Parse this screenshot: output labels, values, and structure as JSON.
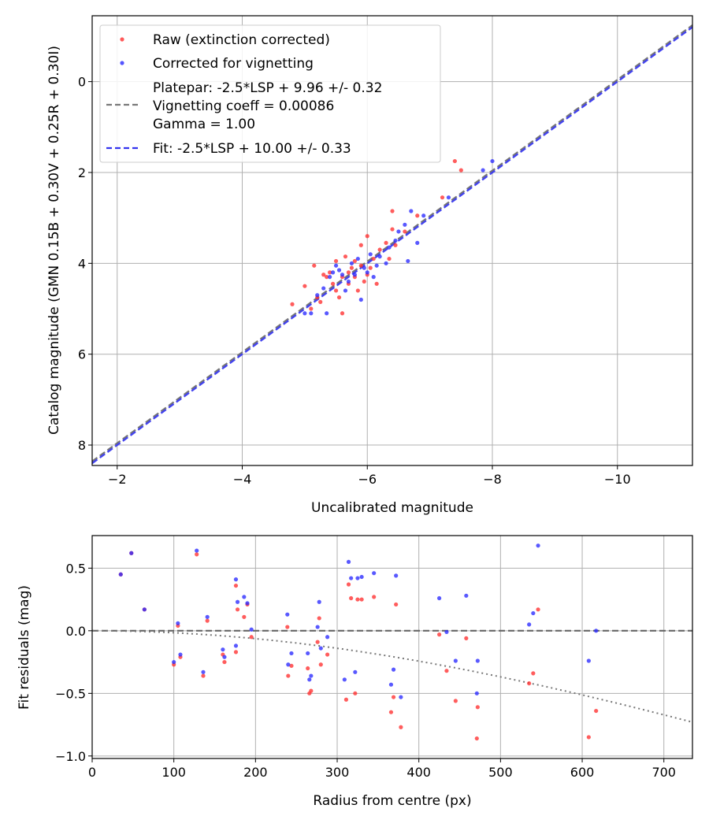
{
  "chart_data": [
    {
      "type": "scatter",
      "id": "calibration",
      "xlabel": "Uncalibrated magnitude",
      "ylabel": "Catalog magnitude (GMN 0.15B + 0.30V + 0.25R + 0.30I)",
      "xlim": [
        -1.6,
        -11.2
      ],
      "ylim": [
        8.45,
        -1.45
      ],
      "x_ticks": [
        -2,
        -4,
        -6,
        -8,
        -10
      ],
      "x_tick_labels": [
        "−2",
        "−4",
        "−6",
        "−8",
        "−10"
      ],
      "y_ticks": [
        0,
        2,
        4,
        6,
        8
      ],
      "y_tick_labels": [
        "0",
        "2",
        "4",
        "6",
        "8"
      ],
      "grid": true,
      "legend_position": "top-left",
      "legend": [
        {
          "label": "Raw (extinction corrected)",
          "kind": "point",
          "color": "#ff3030"
        },
        {
          "label": "Corrected for vignetting",
          "kind": "point",
          "color": "#2a2aff"
        },
        {
          "label_lines": [
            "Platepar: -2.5*LSP + 9.96 +/- 0.32",
            "Vignetting coeff = 0.00086",
            "Gamma = 1.00"
          ],
          "kind": "dash",
          "color": "#7a7a7a"
        },
        {
          "label": "Fit: -2.5*LSP + 10.00 +/- 0.33",
          "kind": "dash",
          "color": "#3333ee"
        }
      ],
      "lines": [
        {
          "name": "Platepar",
          "slope": 1.0,
          "intercept": 9.96,
          "color": "#6f6f6f"
        },
        {
          "name": "Fit",
          "slope": 1.0,
          "intercept": 10.0,
          "color": "#3a3aee"
        }
      ],
      "series": [
        {
          "name": "Raw (extinction corrected)",
          "color": "#ff3030",
          "points": [
            [
              -4.8,
              4.9
            ],
            [
              -5.0,
              4.5
            ],
            [
              -5.1,
              5.0
            ],
            [
              -5.15,
              4.05
            ],
            [
              -5.2,
              4.75
            ],
            [
              -5.25,
              4.85
            ],
            [
              -5.3,
              4.25
            ],
            [
              -5.35,
              4.3
            ],
            [
              -5.4,
              4.2
            ],
            [
              -5.45,
              4.45
            ],
            [
              -5.5,
              3.95
            ],
            [
              -5.5,
              4.6
            ],
            [
              -5.55,
              4.75
            ],
            [
              -5.6,
              4.3
            ],
            [
              -5.6,
              5.1
            ],
            [
              -5.65,
              3.85
            ],
            [
              -5.7,
              4.2
            ],
            [
              -5.7,
              4.45
            ],
            [
              -5.75,
              4.1
            ],
            [
              -5.8,
              4.3
            ],
            [
              -5.8,
              3.95
            ],
            [
              -5.85,
              4.6
            ],
            [
              -5.9,
              4.05
            ],
            [
              -5.9,
              3.6
            ],
            [
              -5.95,
              4.4
            ],
            [
              -6.0,
              4.25
            ],
            [
              -6.0,
              3.4
            ],
            [
              -6.05,
              4.1
            ],
            [
              -6.1,
              3.9
            ],
            [
              -6.15,
              4.45
            ],
            [
              -6.2,
              3.7
            ],
            [
              -6.3,
              3.55
            ],
            [
              -6.35,
              3.9
            ],
            [
              -6.4,
              3.25
            ],
            [
              -6.45,
              3.6
            ],
            [
              -6.4,
              2.85
            ],
            [
              -6.6,
              3.3
            ],
            [
              -6.8,
              2.95
            ],
            [
              -7.2,
              2.55
            ],
            [
              -7.4,
              1.75
            ],
            [
              -7.5,
              1.95
            ]
          ]
        },
        {
          "name": "Corrected for vignetting",
          "color": "#2a2aff",
          "points": [
            [
              -5.0,
              5.1
            ],
            [
              -5.1,
              5.1
            ],
            [
              -5.2,
              4.7
            ],
            [
              -5.3,
              4.55
            ],
            [
              -5.35,
              5.1
            ],
            [
              -5.4,
              4.3
            ],
            [
              -5.45,
              4.2
            ],
            [
              -5.5,
              4.05
            ],
            [
              -5.55,
              4.15
            ],
            [
              -5.6,
              4.25
            ],
            [
              -5.65,
              4.6
            ],
            [
              -5.7,
              4.4
            ],
            [
              -5.75,
              4.0
            ],
            [
              -5.8,
              4.25
            ],
            [
              -5.85,
              3.9
            ],
            [
              -5.9,
              4.8
            ],
            [
              -5.95,
              4.1
            ],
            [
              -6.0,
              4.2
            ],
            [
              -6.05,
              3.8
            ],
            [
              -6.1,
              4.3
            ],
            [
              -6.15,
              4.05
            ],
            [
              -6.2,
              3.85
            ],
            [
              -6.3,
              4.0
            ],
            [
              -6.35,
              3.65
            ],
            [
              -6.45,
              3.5
            ],
            [
              -6.5,
              3.3
            ],
            [
              -6.6,
              3.15
            ],
            [
              -6.65,
              3.95
            ],
            [
              -6.7,
              2.85
            ],
            [
              -6.8,
              3.55
            ],
            [
              -6.9,
              2.95
            ],
            [
              -7.3,
              2.55
            ],
            [
              -7.85,
              1.95
            ],
            [
              -8.0,
              1.75
            ]
          ]
        }
      ]
    },
    {
      "type": "scatter",
      "id": "residuals",
      "xlabel": "Radius from centre (px)",
      "ylabel": "Fit residuals (mag)",
      "xlim": [
        0,
        735
      ],
      "ylim": [
        -1.02,
        0.76
      ],
      "x_ticks": [
        0,
        100,
        200,
        300,
        400,
        500,
        600,
        700
      ],
      "x_tick_labels": [
        "0",
        "100",
        "200",
        "300",
        "400",
        "500",
        "600",
        "700"
      ],
      "y_ticks": [
        0.5,
        0.0,
        -0.5,
        -1.0
      ],
      "y_tick_labels": [
        "0.5",
        "0.0",
        "−0.5",
        "−1.0"
      ],
      "grid": true,
      "reference_line": {
        "y": 0.0,
        "color": "#666666"
      },
      "vignetting_curve": {
        "coeff": 0.00086,
        "color": "#777777"
      },
      "series": [
        {
          "name": "Raw (extinction corrected)",
          "color": "#ff3030",
          "points": [
            [
              35,
              0.45
            ],
            [
              48,
              0.62
            ],
            [
              64,
              0.17
            ],
            [
              100,
              -0.27
            ],
            [
              105,
              0.04
            ],
            [
              108,
              -0.21
            ],
            [
              128,
              0.61
            ],
            [
              136,
              -0.36
            ],
            [
              141,
              0.08
            ],
            [
              160,
              -0.19
            ],
            [
              162,
              -0.25
            ],
            [
              176,
              -0.17
            ],
            [
              176,
              0.36
            ],
            [
              178,
              0.17
            ],
            [
              186,
              0.11
            ],
            [
              190,
              0.21
            ],
            [
              195,
              -0.05
            ],
            [
              239,
              0.03
            ],
            [
              240,
              -0.36
            ],
            [
              244,
              -0.28
            ],
            [
              264,
              -0.3
            ],
            [
              266,
              -0.5
            ],
            [
              268,
              -0.48
            ],
            [
              276,
              -0.09
            ],
            [
              278,
              0.1
            ],
            [
              280,
              -0.27
            ],
            [
              288,
              -0.19
            ],
            [
              311,
              -0.55
            ],
            [
              314,
              0.37
            ],
            [
              317,
              0.26
            ],
            [
              322,
              -0.5
            ],
            [
              325,
              0.25
            ],
            [
              330,
              0.25
            ],
            [
              345,
              0.27
            ],
            [
              366,
              -0.65
            ],
            [
              369,
              -0.53
            ],
            [
              372,
              0.21
            ],
            [
              378,
              -0.77
            ],
            [
              425,
              -0.03
            ],
            [
              434,
              -0.32
            ],
            [
              445,
              -0.56
            ],
            [
              458,
              -0.06
            ],
            [
              471,
              -0.86
            ],
            [
              472,
              -0.61
            ],
            [
              535,
              -0.42
            ],
            [
              540,
              -0.34
            ],
            [
              546,
              0.17
            ],
            [
              608,
              -0.85
            ],
            [
              617,
              -0.64
            ]
          ]
        },
        {
          "name": "Corrected for vignetting",
          "color": "#2a2aff",
          "points": [
            [
              35,
              0.45
            ],
            [
              48,
              0.62
            ],
            [
              64,
              0.17
            ],
            [
              100,
              -0.25
            ],
            [
              105,
              0.06
            ],
            [
              108,
              -0.19
            ],
            [
              128,
              0.64
            ],
            [
              136,
              -0.33
            ],
            [
              141,
              0.11
            ],
            [
              160,
              -0.15
            ],
            [
              162,
              -0.21
            ],
            [
              176,
              -0.12
            ],
            [
              176,
              0.41
            ],
            [
              178,
              0.23
            ],
            [
              186,
              0.27
            ],
            [
              190,
              0.22
            ],
            [
              195,
              0.01
            ],
            [
              239,
              0.13
            ],
            [
              240,
              -0.27
            ],
            [
              244,
              -0.18
            ],
            [
              264,
              -0.18
            ],
            [
              266,
              -0.39
            ],
            [
              268,
              -0.36
            ],
            [
              276,
              0.03
            ],
            [
              278,
              0.23
            ],
            [
              280,
              -0.14
            ],
            [
              288,
              -0.05
            ],
            [
              309,
              -0.39
            ],
            [
              314,
              0.55
            ],
            [
              317,
              0.42
            ],
            [
              322,
              -0.33
            ],
            [
              325,
              0.42
            ],
            [
              330,
              0.43
            ],
            [
              345,
              0.46
            ],
            [
              366,
              -0.43
            ],
            [
              369,
              -0.31
            ],
            [
              372,
              0.44
            ],
            [
              378,
              -0.53
            ],
            [
              425,
              0.26
            ],
            [
              434,
              -0.01
            ],
            [
              445,
              -0.24
            ],
            [
              458,
              0.28
            ],
            [
              471,
              -0.5
            ],
            [
              472,
              -0.24
            ],
            [
              535,
              0.05
            ],
            [
              540,
              0.14
            ],
            [
              546,
              0.68
            ],
            [
              608,
              -0.24
            ],
            [
              617,
              0.0
            ]
          ]
        }
      ]
    }
  ]
}
